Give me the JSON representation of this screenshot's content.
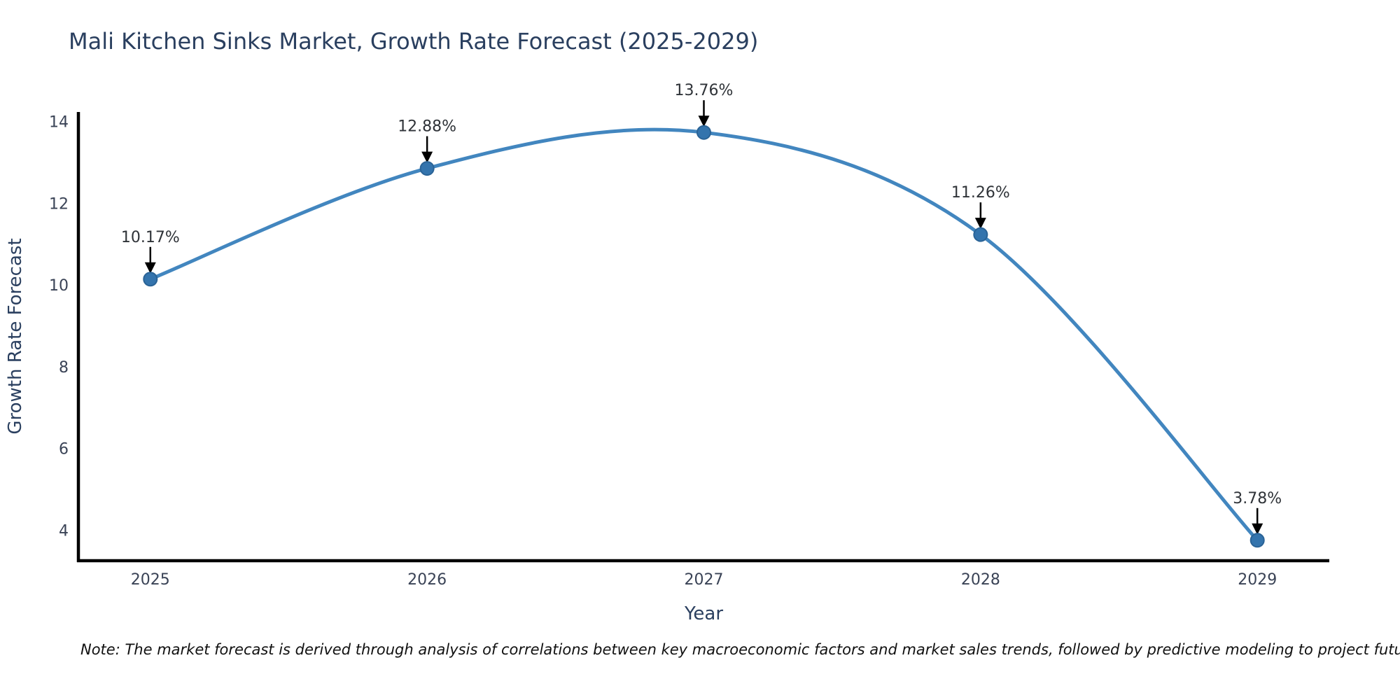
{
  "chart_data": {
    "type": "line",
    "title": "Mali Kitchen Sinks Market, Growth Rate Forecast (2025-2029)",
    "xlabel": "Year",
    "ylabel": "Growth Rate Forecast",
    "x": [
      2025,
      2026,
      2027,
      2028,
      2029
    ],
    "values": [
      10.17,
      12.88,
      13.76,
      11.26,
      3.78
    ],
    "point_labels": [
      "10.17%",
      "12.88%",
      "13.76%",
      "11.26%",
      "3.78%"
    ],
    "xticks": [
      "2025",
      "2026",
      "2027",
      "2028",
      "2029"
    ],
    "yticks": [
      4,
      6,
      8,
      10,
      12,
      14
    ],
    "xlim": [
      2024.74,
      2029.26
    ],
    "ylim": [
      3.28,
      14.26
    ],
    "grid": false,
    "legend": false,
    "smooth_line": true,
    "annotation_arrows": true,
    "note": "Note: The market forecast is derived through analysis of correlations between key macroeconomic factors and market sales trends, followed by predictive modeling to project future sales",
    "colors": {
      "line": "#4286bf",
      "marker_fill": "#3474ad",
      "marker_edge": "#2a6396",
      "axis_spine": "#000000",
      "title_text": "#2a3f5f",
      "axis_title_text": "#2a3f5f",
      "tick_text": "#3a4356",
      "annotation_text": "#2f3338",
      "arrow": "#000000",
      "note_text": "#111111",
      "background": "#ffffff"
    }
  }
}
